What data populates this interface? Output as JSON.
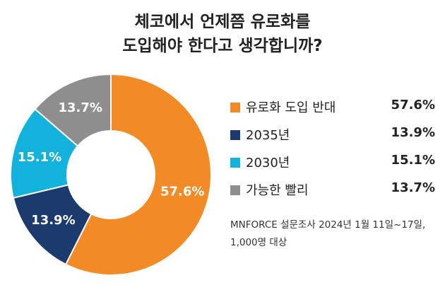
{
  "title_lines": [
    "체코에서 언제쯤 유로화를",
    "도입해야 한다고 생각합니까?"
  ],
  "chart_data": {
    "type": "pie",
    "categories": [
      "유로화 도입 반대",
      "2035년",
      "2030년",
      "가능한 빨리"
    ],
    "values": [
      57.6,
      13.9,
      15.1,
      13.7
    ],
    "value_labels": [
      "57.6%",
      "13.9%",
      "15.1%",
      "13.7%"
    ],
    "colors": [
      "#F28A25",
      "#1B3A6E",
      "#13B2DC",
      "#8E8E8E"
    ],
    "legend_placement": "right"
  },
  "source_lines": [
    "MNFORCE 설문조사 2024년 1월 11일~17일,",
    "1,000명 대상"
  ]
}
